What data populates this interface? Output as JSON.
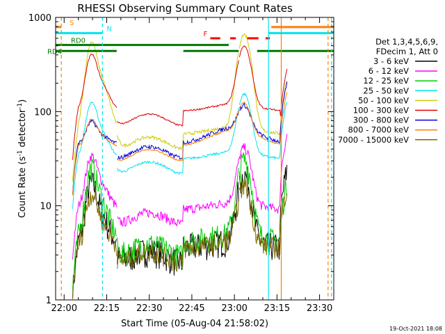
{
  "chart_data": {
    "type": "line",
    "title": "RHESSI Observing Summary Count Rates",
    "xlabel": "Start Time (05-Aug-04 21:58:02)",
    "ylabel_main": "Count Rate (s",
    "ylabel_sup1": "-1",
    "ylabel_mid": " detector",
    "ylabel_sup2": "-1",
    "ylabel_end": ")",
    "y_scale": "log",
    "ylim": [
      1,
      1000
    ],
    "xlim_minutes": [
      -3,
      58
    ],
    "x_ticks": [
      {
        "t": 0,
        "label": "22:00"
      },
      {
        "t": 15,
        "label": "22:15"
      },
      {
        "t": 30,
        "label": "22:30"
      },
      {
        "t": 45,
        "label": "22:45"
      },
      {
        "t": 60,
        "label": "23:00"
      },
      {
        "t": 75,
        "label": "23:15"
      },
      {
        "t": 90,
        "label": "23:30"
      }
    ],
    "y_ticks": [
      {
        "v": 1,
        "label": "1"
      },
      {
        "v": 10,
        "label": "10"
      },
      {
        "v": 100,
        "label": "100"
      },
      {
        "v": 1000,
        "label": "1000"
      }
    ],
    "legend": {
      "position": "right",
      "header1": "Det 1,3,4,5,6,9,",
      "header2": "FDecim 1, Att 0"
    },
    "series": [
      {
        "name": "3 - 6 keV",
        "color": "#000000",
        "base": 3.6,
        "flare": 18,
        "tail": 6,
        "noise": 0.35
      },
      {
        "name": "6 - 12 keV",
        "color": "#ff00ff",
        "base": 9,
        "flare": 35,
        "tail": 14,
        "noise": 0.12
      },
      {
        "name": "12 - 25 keV",
        "color": "#00cc00",
        "base": 4.2,
        "flare": 26,
        "tail": 4.5,
        "noise": 0.3
      },
      {
        "name": "25 - 50 keV",
        "color": "#00e5ee",
        "base": 31,
        "flare": 130,
        "tail": 32,
        "noise": 0.03
      },
      {
        "name": "50 - 100 keV",
        "color": "#cccc00",
        "base": 57,
        "flare": 560,
        "tail": 55,
        "noise": 0.04
      },
      {
        "name": "100 - 300 keV",
        "color": "#dd0000",
        "base": 100,
        "flare": 420,
        "tail": 70,
        "noise": 0.02
      },
      {
        "name": "300 - 800 keV",
        "color": "#0000dd",
        "base": 45,
        "flare": 80,
        "tail": 50,
        "noise": 0.05
      },
      {
        "name": "800 - 7000 keV",
        "color": "#ff7f00",
        "base": 42,
        "flare": 85,
        "tail": 40,
        "noise": 0.02
      },
      {
        "name": "7000 - 15000 keV",
        "color": "#7b6b00",
        "base": 3.5,
        "flare": 14,
        "tail": 4,
        "noise": 0.25
      }
    ],
    "flags": [
      {
        "label": "S",
        "color": "#ff7f00",
        "value": 790,
        "segments": [
          [
            -3,
            -1
          ],
          [
            73,
            58
          ]
        ]
      },
      {
        "label": "N",
        "color": "#00e5ee",
        "value": 680,
        "segments": [
          [
            -3,
            13.5
          ],
          [
            72,
            58
          ]
        ]
      },
      {
        "label": "F",
        "color": "#ff0000",
        "value": 600,
        "segments": [
          [
            51.5,
            55
          ],
          [
            58.5,
            60.5
          ],
          [
            64.5,
            68.5
          ],
          [
            71,
            72.5
          ]
        ]
      },
      {
        "label": "RD0",
        "color": "#007700",
        "value": 510,
        "segments": [
          [
            -3,
            58
          ]
        ]
      },
      {
        "label": "RD4",
        "color": "#007700",
        "value": 440,
        "segments": [
          [
            -3,
            18.5
          ],
          [
            42,
            61.5
          ],
          [
            68,
            58
          ]
        ]
      }
    ],
    "footer_date": "19-Oct-2021 18:08"
  }
}
